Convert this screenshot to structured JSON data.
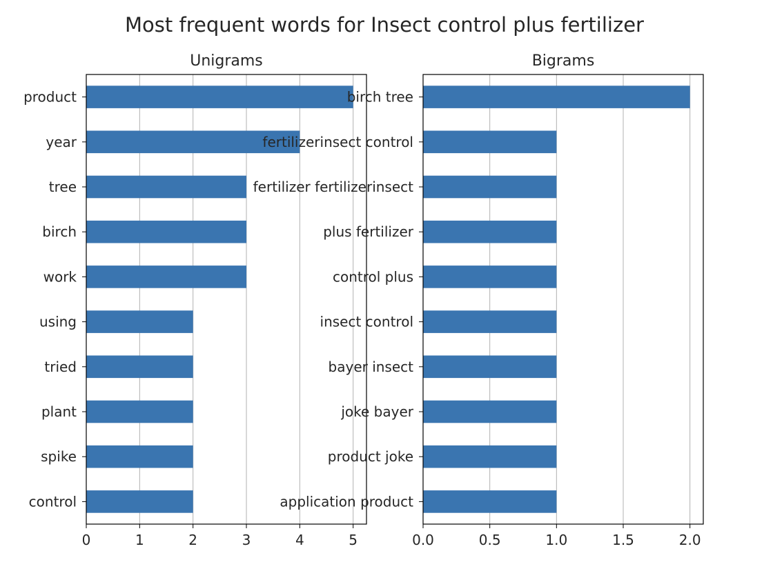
{
  "title": "Most frequent words for Insect control plus fertilizer",
  "bar_color": "#3a75b0",
  "chart_data": [
    {
      "type": "bar",
      "orientation": "horizontal",
      "title": "Unigrams",
      "categories": [
        "product",
        "year",
        "tree",
        "birch",
        "work",
        "using",
        "tried",
        "plant",
        "spike",
        "control"
      ],
      "values": [
        5,
        4,
        3,
        3,
        3,
        2,
        2,
        2,
        2,
        2
      ],
      "xlim": [
        0,
        5.25
      ],
      "xticks": [
        0,
        1,
        2,
        3,
        4,
        5
      ],
      "xtick_labels": [
        "0",
        "1",
        "2",
        "3",
        "4",
        "5"
      ],
      "grid": "vertical",
      "xlabel": "",
      "ylabel": ""
    },
    {
      "type": "bar",
      "orientation": "horizontal",
      "title": "Bigrams",
      "categories": [
        "birch tree",
        "fertilizerinsect control",
        "fertilizer fertilizerinsect",
        "plus fertilizer",
        "control plus",
        "insect control",
        "bayer insect",
        "joke bayer",
        "product joke",
        "application product"
      ],
      "values": [
        2,
        1,
        1,
        1,
        1,
        1,
        1,
        1,
        1,
        1
      ],
      "xlim": [
        0,
        2.1
      ],
      "xticks": [
        0,
        0.5,
        1,
        1.5,
        2
      ],
      "xtick_labels": [
        "0.0",
        "0.5",
        "1.0",
        "1.5",
        "2.0"
      ],
      "grid": "vertical",
      "xlabel": "",
      "ylabel": ""
    }
  ]
}
